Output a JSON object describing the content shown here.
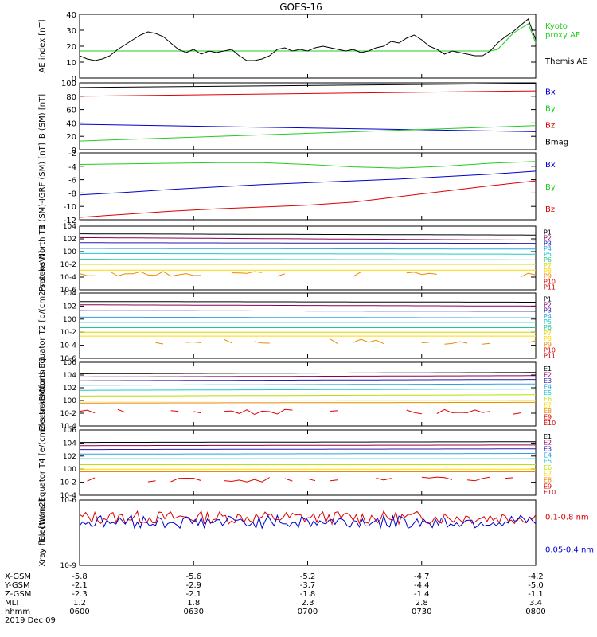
{
  "title": "GOES-16",
  "colors": {
    "black": "#000000",
    "red": "#dd0000",
    "green": "#22cc22",
    "blue": "#0000cc",
    "P1": "#000000",
    "P2": "#8b0055",
    "P3": "#2a1aa8",
    "P4": "#2aa3dd",
    "P5": "#20c8c8",
    "P6": "#20c890",
    "P7": "#d4d800",
    "P8": "#ffd700",
    "P9": "#e88a00",
    "P10": "#e00000",
    "P11": "#c00000",
    "E1": "#000000",
    "E2": "#8b0055",
    "E3": "#2a1aa8",
    "E4": "#2aa3dd",
    "E5": "#20c8c8",
    "E6": "#b8e000",
    "E7": "#ffd700",
    "E8": "#e88a00",
    "E9": "#e00000",
    "E10": "#c00000"
  },
  "chart_data": [
    {
      "type": "line",
      "ylabel": "AE index [nT]",
      "ylim": [
        0,
        40
      ],
      "yticks": [
        "0",
        "10",
        "20",
        "30",
        "40"
      ],
      "x_hours": [
        6.0,
        6.033,
        6.067,
        6.1,
        6.133,
        6.167,
        6.2,
        6.233,
        6.267,
        6.3,
        6.333,
        6.367,
        6.4,
        6.433,
        6.467,
        6.5,
        6.533,
        6.567,
        6.6,
        6.633,
        6.667,
        6.7,
        6.733,
        6.767,
        6.8,
        6.833,
        6.867,
        6.9,
        6.933,
        6.967,
        7.0,
        7.033,
        7.067,
        7.1,
        7.133,
        7.167,
        7.2,
        7.233,
        7.267,
        7.3,
        7.333,
        7.367,
        7.4,
        7.433,
        7.467,
        7.5,
        7.533,
        7.567,
        7.6,
        7.633,
        7.667,
        7.7,
        7.733,
        7.767,
        7.8,
        7.833,
        7.867,
        7.9,
        7.933,
        7.967,
        8.0
      ],
      "series": [
        {
          "name": "Kyoto proxy AE",
          "color": "green",
          "values": [
            17,
            17,
            17,
            17,
            17,
            17,
            17,
            17,
            17,
            17,
            17,
            17,
            17,
            17,
            17,
            17,
            17,
            17,
            17,
            17,
            17,
            17,
            17,
            17,
            17,
            17,
            17,
            17,
            17,
            17,
            17,
            17,
            17,
            17,
            17,
            17,
            17,
            17,
            17,
            17,
            17,
            17,
            17,
            17,
            17,
            17,
            17,
            17,
            17,
            17,
            17,
            17,
            17,
            17,
            17,
            18,
            23,
            28,
            31,
            34,
            22
          ]
        },
        {
          "name": "Themis AE",
          "color": "black",
          "values": [
            14,
            12,
            11,
            12,
            14,
            18,
            21,
            24,
            27,
            29,
            28,
            26,
            22,
            18,
            16,
            18,
            15,
            17,
            16,
            17,
            18,
            14,
            11,
            11,
            12,
            14,
            18,
            19,
            17,
            18,
            17,
            19,
            20,
            19,
            18,
            17,
            18,
            16,
            17,
            19,
            20,
            23,
            22,
            25,
            27,
            24,
            20,
            18,
            15,
            17,
            16,
            15,
            14,
            14,
            17,
            22,
            26,
            29,
            33,
            37,
            24
          ]
        }
      ]
    },
    {
      "type": "line",
      "ylabel": "B (SM) [nT]",
      "ylim": [
        0,
        100
      ],
      "yticks": [
        "0",
        "20",
        "40",
        "60",
        "80",
        "100"
      ],
      "x_hours": [
        6.0,
        8.0
      ],
      "series": [
        {
          "name": "Bx",
          "color": "blue",
          "values": [
            38,
            27
          ]
        },
        {
          "name": "By",
          "color": "green",
          "values": [
            13,
            36
          ]
        },
        {
          "name": "Bz",
          "color": "red",
          "values": [
            80,
            88
          ]
        },
        {
          "name": "Bmag",
          "color": "black",
          "values": [
            93,
            99
          ]
        }
      ]
    },
    {
      "type": "line",
      "ylabel": "B (SM)-IGRF (SM) [nT]",
      "ylim": [
        -12,
        -1
      ],
      "yticks": [
        "-12",
        "-10",
        "-8",
        "-6",
        "-4",
        "-2"
      ],
      "x_hours": [
        6.0,
        6.2,
        6.4,
        6.6,
        6.8,
        7.0,
        7.2,
        7.4,
        7.6,
        7.8,
        8.0
      ],
      "series": [
        {
          "name": "Bx",
          "color": "blue",
          "values": [
            -7.9,
            -7.5,
            -7.0,
            -6.6,
            -6.2,
            -5.9,
            -5.6,
            -5.3,
            -4.9,
            -4.5,
            -4.0
          ]
        },
        {
          "name": "By",
          "color": "green",
          "values": [
            -2.9,
            -2.8,
            -2.7,
            -2.6,
            -2.6,
            -2.9,
            -3.3,
            -3.5,
            -3.2,
            -2.7,
            -2.4
          ]
        },
        {
          "name": "Bz",
          "color": "red",
          "values": [
            -11.6,
            -11.1,
            -10.6,
            -10.2,
            -9.9,
            -9.6,
            -9.1,
            -8.2,
            -7.3,
            -6.4,
            -5.6
          ]
        }
      ]
    },
    {
      "type": "line",
      "log": true,
      "ylabel": "Protons North T1",
      "ylim": [
        -6,
        4
      ],
      "yticks": [
        "10-6",
        "10-4",
        "10-2",
        "100",
        "102",
        "104"
      ],
      "series": [
        {
          "name": "P1",
          "log10": [
            2.8,
            2.6
          ]
        },
        {
          "name": "P2",
          "log10": [
            2.2,
            1.8
          ]
        },
        {
          "name": "P3",
          "log10": [
            1.4,
            1.3
          ]
        },
        {
          "name": "P4",
          "log10": [
            0.5,
            0.4
          ]
        },
        {
          "name": "P5",
          "log10": [
            -0.3,
            -0.4
          ]
        },
        {
          "name": "P6",
          "log10": [
            -1.2,
            -1.3
          ]
        },
        {
          "name": "P7",
          "log10": [
            -2.0,
            -2.0
          ]
        },
        {
          "name": "P8",
          "log10": [
            -2.9,
            -2.9
          ]
        },
        {
          "name": "P9",
          "log10": [
            -3.5,
            -3.6
          ]
        },
        {
          "name": "P10",
          "log10": [
            null,
            null
          ]
        },
        {
          "name": "P11",
          "log10": [
            null,
            null
          ]
        }
      ]
    },
    {
      "type": "line",
      "log": true,
      "ylabel": "Protons Equator T2 [p/(cm2-s-sr-keV)]",
      "ylim": [
        -6,
        4
      ],
      "yticks": [
        "10-6",
        "10-4",
        "10-2",
        "100",
        "102",
        "104"
      ],
      "series": [
        {
          "name": "P1",
          "log10": [
            2.7,
            2.6
          ]
        },
        {
          "name": "P2",
          "log10": [
            2.2,
            2.0
          ]
        },
        {
          "name": "P3",
          "log10": [
            1.3,
            1.2
          ]
        },
        {
          "name": "P4",
          "log10": [
            0.3,
            0.2
          ]
        },
        {
          "name": "P5",
          "log10": [
            -0.5,
            -0.5
          ]
        },
        {
          "name": "P6",
          "log10": [
            -1.3,
            -1.3
          ]
        },
        {
          "name": "P7",
          "log10": [
            -2.0,
            -2.0
          ]
        },
        {
          "name": "P8",
          "log10": [
            -2.6,
            -2.6
          ]
        },
        {
          "name": "P9",
          "log10": [
            -3.4,
            -3.5
          ]
        },
        {
          "name": "P10",
          "log10": [
            null,
            null
          ]
        },
        {
          "name": "P11",
          "log10": [
            null,
            null
          ]
        }
      ]
    },
    {
      "type": "line",
      "log": true,
      "ylabel": "Electrons North T3",
      "ylim": [
        -4,
        6
      ],
      "yticks": [
        "10-4",
        "10-2",
        "100",
        "102",
        "104",
        "106"
      ],
      "series": [
        {
          "name": "E1",
          "log10": [
            4.2,
            4.4
          ]
        },
        {
          "name": "E2",
          "log10": [
            3.7,
            3.9
          ]
        },
        {
          "name": "E3",
          "log10": [
            3.1,
            3.3
          ]
        },
        {
          "name": "E4",
          "log10": [
            2.4,
            2.6
          ]
        },
        {
          "name": "E5",
          "log10": [
            1.6,
            1.8
          ]
        },
        {
          "name": "E6",
          "log10": [
            0.7,
            0.9
          ]
        },
        {
          "name": "E7",
          "log10": [
            -0.1,
            0.0
          ]
        },
        {
          "name": "E8",
          "log10": [
            -0.4,
            -0.3
          ]
        },
        {
          "name": "E9",
          "log10": [
            -1.8,
            -1.8
          ]
        },
        {
          "name": "E10",
          "log10": [
            null,
            null
          ]
        }
      ]
    },
    {
      "type": "line",
      "log": true,
      "ylabel": "Electrons Equator T4 [e/(cm2-s-sr-keV)]",
      "ylim": [
        -4,
        6
      ],
      "yticks": [
        "10-4",
        "10-2",
        "100",
        "102",
        "104",
        "106"
      ],
      "series": [
        {
          "name": "E1",
          "log10": [
            4.1,
            4.2
          ]
        },
        {
          "name": "E2",
          "log10": [
            3.6,
            3.7
          ]
        },
        {
          "name": "E3",
          "log10": [
            3.0,
            3.1
          ]
        },
        {
          "name": "E4",
          "log10": [
            2.3,
            2.4
          ]
        },
        {
          "name": "E5",
          "log10": [
            1.6,
            1.6
          ]
        },
        {
          "name": "E6",
          "log10": [
            0.7,
            0.7
          ]
        },
        {
          "name": "E7",
          "log10": [
            0.0,
            0.0
          ]
        },
        {
          "name": "E8",
          "log10": [
            -0.4,
            -0.4
          ]
        },
        {
          "name": "E9",
          "log10": [
            -1.6,
            -1.6
          ]
        },
        {
          "name": "E10",
          "log10": [
            null,
            null
          ]
        }
      ]
    },
    {
      "type": "line",
      "log": true,
      "ylabel": "Xray flux [W/m2]",
      "ylim": [
        -9,
        -6
      ],
      "yticks": [
        "10-9",
        "10-6"
      ],
      "series": [
        {
          "name": "0.1-0.8 nm",
          "color": "red",
          "log10_level": -6.8
        },
        {
          "name": "0.05-0.4 nm",
          "color": "blue",
          "log10_level": -7.0
        }
      ]
    }
  ],
  "bottom_axis": {
    "rows": [
      {
        "label": "X-GSM",
        "values": [
          "-5.8",
          "-5.6",
          "-5.2",
          "-4.7",
          "-4.2"
        ]
      },
      {
        "label": "Y-GSM",
        "values": [
          "-2.1",
          "-2.9",
          "-3.7",
          "-4.4",
          "-5.0"
        ]
      },
      {
        "label": "Z-GSM",
        "values": [
          "-2.3",
          "-2.1",
          "-1.8",
          "-1.4",
          "-1.1"
        ]
      },
      {
        "label": "MLT",
        "values": [
          "1.2",
          "1.8",
          "2.3",
          "2.8",
          "3.4"
        ]
      },
      {
        "label": "hhmm",
        "values": [
          "0600",
          "0630",
          "0700",
          "0730",
          "0800"
        ]
      }
    ],
    "date": "2019 Dec 09"
  },
  "legends": {
    "ae": [
      {
        "text": "Kyoto",
        "color": "green"
      },
      {
        "text": "proxy AE",
        "color": "green"
      },
      {
        "text": "Themis AE",
        "color": "black"
      }
    ],
    "b": [
      {
        "text": "Bx",
        "color": "blue"
      },
      {
        "text": "By",
        "color": "green"
      },
      {
        "text": "Bz",
        "color": "red"
      },
      {
        "text": "Bmag",
        "color": "black"
      }
    ],
    "bigrf": [
      {
        "text": "Bx",
        "color": "blue"
      },
      {
        "text": "By",
        "color": "green"
      },
      {
        "text": "Bz",
        "color": "red"
      }
    ],
    "protons": [
      "P1",
      "P2",
      "P3",
      "P4",
      "P5",
      "P6",
      "P7",
      "P8",
      "P9",
      "P10",
      "P11"
    ],
    "electrons": [
      "E1",
      "E2",
      "E3",
      "E4",
      "E5",
      "E6",
      "E7",
      "E8",
      "E9",
      "E10"
    ],
    "xray": [
      {
        "text": "0.1-0.8 nm",
        "color": "red"
      },
      {
        "text": "0.05-0.4 nm",
        "color": "blue"
      }
    ]
  }
}
